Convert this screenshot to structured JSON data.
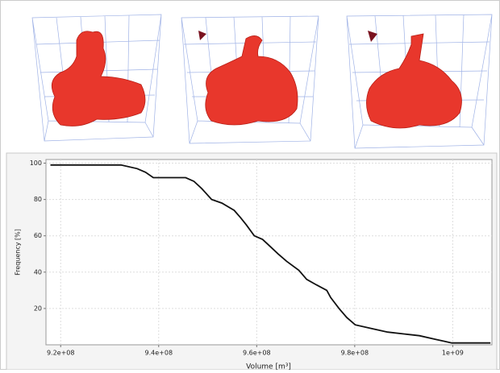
{
  "chart_data": {
    "type": "line",
    "x_label": "Volume [m³]",
    "y_label": "Frequency [%]",
    "x": [
      917900000,
      932300000,
      935600000,
      937300000,
      938900000,
      945500000,
      947200000,
      948800000,
      950800000,
      952900000,
      955400000,
      956700000,
      957900000,
      959500000,
      961200000,
      962800000,
      964400000,
      966100000,
      968600000,
      970200000,
      972200000,
      974300000,
      975100000,
      976800000,
      978400000,
      980100000,
      983400000,
      986700000,
      990000000,
      993200000,
      996500000,
      998200000,
      999800000,
      1007700000
    ],
    "series": [
      {
        "color": "#111111",
        "values": [
          99,
          99,
          97,
          95,
          92,
          92,
          90,
          86,
          80,
          78,
          74,
          70,
          66,
          60,
          58,
          54,
          50,
          46,
          41,
          36,
          33,
          30,
          26,
          20,
          15,
          11,
          9,
          7,
          6,
          5,
          3,
          2,
          1,
          1
        ]
      }
    ],
    "xlim": [
      917000000,
      1008000000
    ],
    "xticks": [
      {
        "value": 920000000,
        "label": "9.2e+08"
      },
      {
        "value": 940000000,
        "label": "9.4e+08"
      },
      {
        "value": 960000000,
        "label": "9.6e+08"
      },
      {
        "value": 980000000,
        "label": "9.8e+08"
      },
      {
        "value": 1000000000,
        "label": "1e+09"
      }
    ],
    "ylim": [
      0,
      102
    ],
    "yticks": [
      20,
      40,
      60,
      80,
      100
    ],
    "grid": true
  }
}
